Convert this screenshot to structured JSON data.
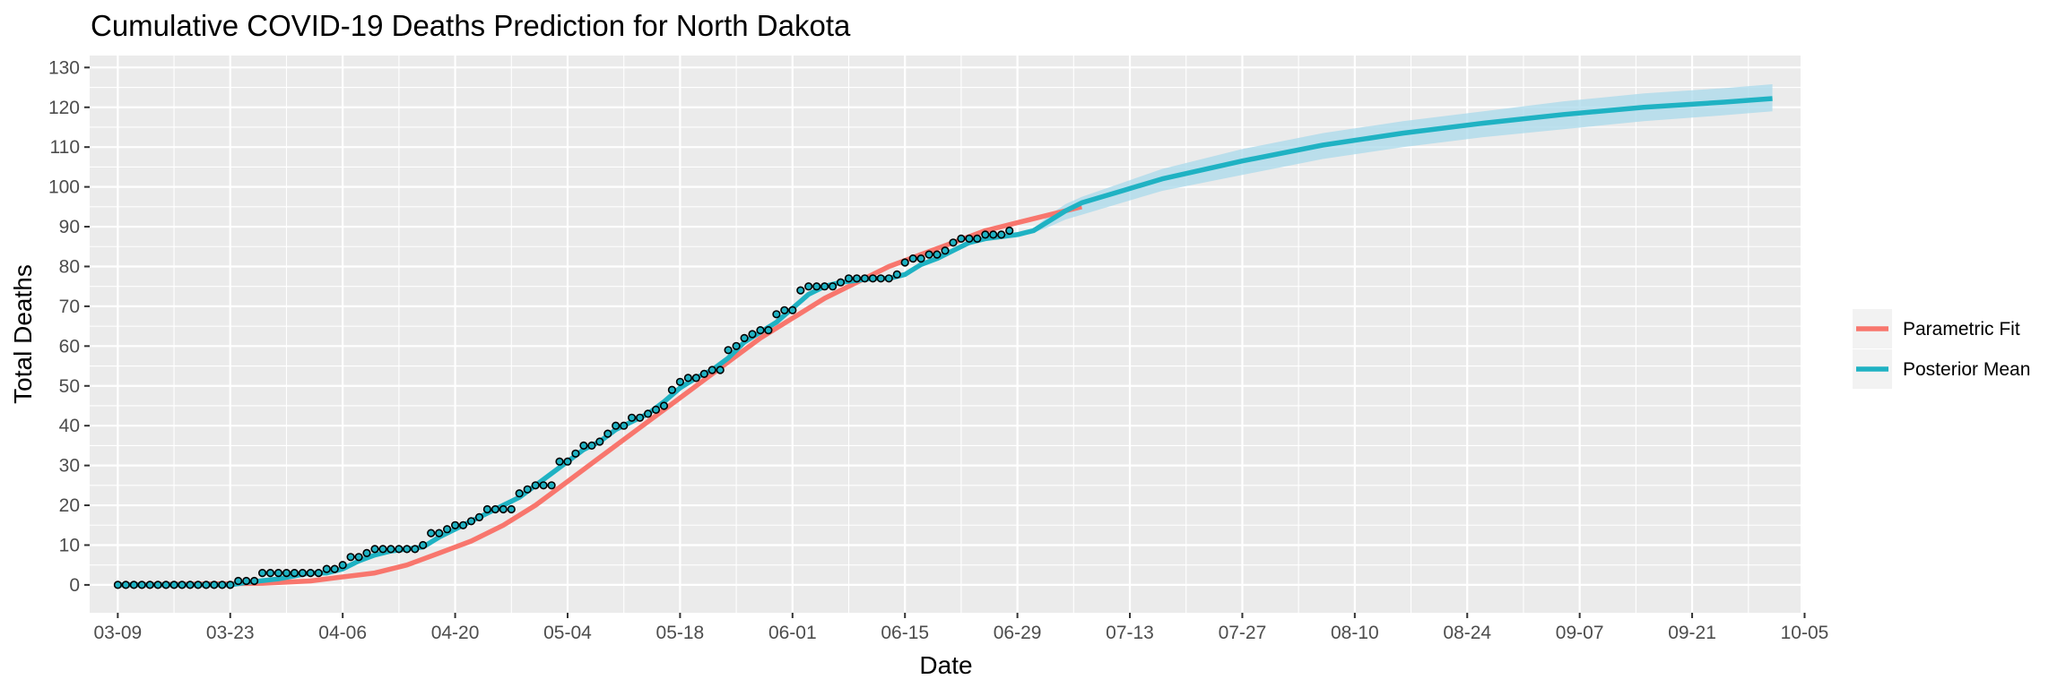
{
  "chart_data": {
    "type": "line",
    "title": "Cumulative COVID-19 Deaths Prediction for North Dakota",
    "xlabel": "Date",
    "ylabel": "Total Deaths",
    "x_start_date": "2020-03-09",
    "x_range_days": [
      -3.5,
      209.5
    ],
    "ylim": [
      -7,
      133
    ],
    "y_ticks": [
      0,
      10,
      20,
      30,
      40,
      50,
      60,
      70,
      80,
      90,
      100,
      110,
      120,
      130
    ],
    "x_tick_days": [
      0,
      14,
      28,
      42,
      56,
      70,
      84,
      98,
      112,
      126,
      140,
      154,
      168,
      182,
      196,
      210
    ],
    "x_tick_labels": [
      "03-09",
      "03-23",
      "04-06",
      "04-20",
      "05-04",
      "05-18",
      "06-01",
      "06-15",
      "06-29",
      "07-13",
      "07-27",
      "08-10",
      "08-24",
      "09-07",
      "09-21",
      "10-05"
    ],
    "grid": true,
    "legend_position": "right",
    "colors": {
      "parametric": "#F8766D",
      "posterior": "#1FB2C3",
      "band": "#A9D9EB",
      "point_fill": "#1FB2C3",
      "panel": "#EBEBEB",
      "grid": "#FFFFFF"
    },
    "legend": [
      {
        "name": "Parametric Fit",
        "color": "#F8766D"
      },
      {
        "name": "Posterior Mean",
        "color": "#1FB2C3"
      }
    ],
    "observed": [
      0,
      0,
      0,
      0,
      0,
      0,
      0,
      0,
      0,
      0,
      0,
      0,
      0,
      0,
      0,
      1,
      1,
      1,
      3,
      3,
      3,
      3,
      3,
      3,
      3,
      3,
      4,
      4,
      5,
      7,
      7,
      8,
      9,
      9,
      9,
      9,
      9,
      9,
      10,
      13,
      13,
      14,
      15,
      15,
      16,
      17,
      19,
      19,
      19,
      19,
      23,
      24,
      25,
      25,
      25,
      31,
      31,
      33,
      35,
      35,
      36,
      38,
      40,
      40,
      42,
      42,
      43,
      44,
      45,
      49,
      51,
      52,
      52,
      53,
      54,
      54,
      59,
      60,
      62,
      63,
      64,
      64,
      68,
      69,
      69,
      74,
      75,
      75,
      75,
      75,
      76,
      77,
      77,
      77,
      77,
      77,
      77,
      78,
      81,
      82,
      82,
      83,
      83,
      84,
      86,
      87,
      87,
      87,
      88,
      88,
      88,
      89
    ],
    "parametric_fit": [
      [
        0,
        0.0
      ],
      [
        10,
        0.2
      ],
      [
        18,
        0.4
      ],
      [
        20,
        0.6
      ],
      [
        24,
        1
      ],
      [
        28,
        2
      ],
      [
        32,
        3
      ],
      [
        36,
        5
      ],
      [
        40,
        8
      ],
      [
        44,
        11
      ],
      [
        48,
        15
      ],
      [
        52,
        20
      ],
      [
        56,
        26
      ],
      [
        60,
        32
      ],
      [
        64,
        38
      ],
      [
        68,
        44
      ],
      [
        72,
        50
      ],
      [
        76,
        56
      ],
      [
        80,
        62
      ],
      [
        84,
        67
      ],
      [
        88,
        72
      ],
      [
        92,
        76
      ],
      [
        96,
        80
      ],
      [
        100,
        83
      ],
      [
        104,
        86
      ],
      [
        108,
        89
      ],
      [
        112,
        91
      ],
      [
        116,
        93
      ],
      [
        120,
        95
      ]
    ],
    "posterior_mean": [
      [
        0,
        0.0
      ],
      [
        14,
        0.0
      ],
      [
        16,
        0.6
      ],
      [
        20,
        1.5
      ],
      [
        24,
        3
      ],
      [
        26,
        3
      ],
      [
        28,
        4
      ],
      [
        30,
        6
      ],
      [
        32,
        7.5
      ],
      [
        34,
        8.5
      ],
      [
        36,
        9
      ],
      [
        38,
        9.5
      ],
      [
        40,
        12
      ],
      [
        42,
        14
      ],
      [
        44,
        16
      ],
      [
        46,
        18
      ],
      [
        48,
        20
      ],
      [
        50,
        22
      ],
      [
        52,
        25
      ],
      [
        54,
        28
      ],
      [
        56,
        31
      ],
      [
        58,
        34
      ],
      [
        60,
        36
      ],
      [
        62,
        39
      ],
      [
        64,
        41
      ],
      [
        66,
        43
      ],
      [
        68,
        46
      ],
      [
        70,
        49.5
      ],
      [
        72,
        52
      ],
      [
        74,
        54
      ],
      [
        76,
        57
      ],
      [
        78,
        61
      ],
      [
        80,
        63.5
      ],
      [
        82,
        66
      ],
      [
        84,
        69.5
      ],
      [
        86,
        73
      ],
      [
        88,
        75
      ],
      [
        90,
        76
      ],
      [
        92,
        76.5
      ],
      [
        94,
        77
      ],
      [
        96,
        77
      ],
      [
        98,
        78
      ],
      [
        100,
        80.5
      ],
      [
        102,
        82
      ],
      [
        104,
        84
      ],
      [
        106,
        86
      ],
      [
        108,
        87
      ],
      [
        110,
        87.5
      ],
      [
        112,
        88
      ],
      [
        114,
        89
      ],
      [
        116,
        91.5
      ],
      [
        118,
        94
      ],
      [
        120,
        96
      ],
      [
        125,
        99
      ],
      [
        130,
        102
      ],
      [
        140,
        106.5
      ],
      [
        150,
        110.5
      ],
      [
        160,
        113.5
      ],
      [
        170,
        116
      ],
      [
        180,
        118.2
      ],
      [
        190,
        120
      ],
      [
        200,
        121.3
      ],
      [
        206,
        122.2
      ]
    ],
    "posterior_band": [
      [
        114,
        89.5,
        88.5
      ],
      [
        116,
        93,
        90
      ],
      [
        118,
        95.7,
        91.8
      ],
      [
        120,
        97.5,
        93
      ],
      [
        125,
        101,
        96
      ],
      [
        130,
        104.5,
        99
      ],
      [
        140,
        109.5,
        103
      ],
      [
        150,
        113.5,
        107
      ],
      [
        160,
        116.5,
        110
      ],
      [
        170,
        119,
        112.5
      ],
      [
        180,
        121.5,
        114.5
      ],
      [
        190,
        123.5,
        116.5
      ],
      [
        200,
        124.8,
        118
      ],
      [
        206,
        125.8,
        119
      ]
    ]
  }
}
